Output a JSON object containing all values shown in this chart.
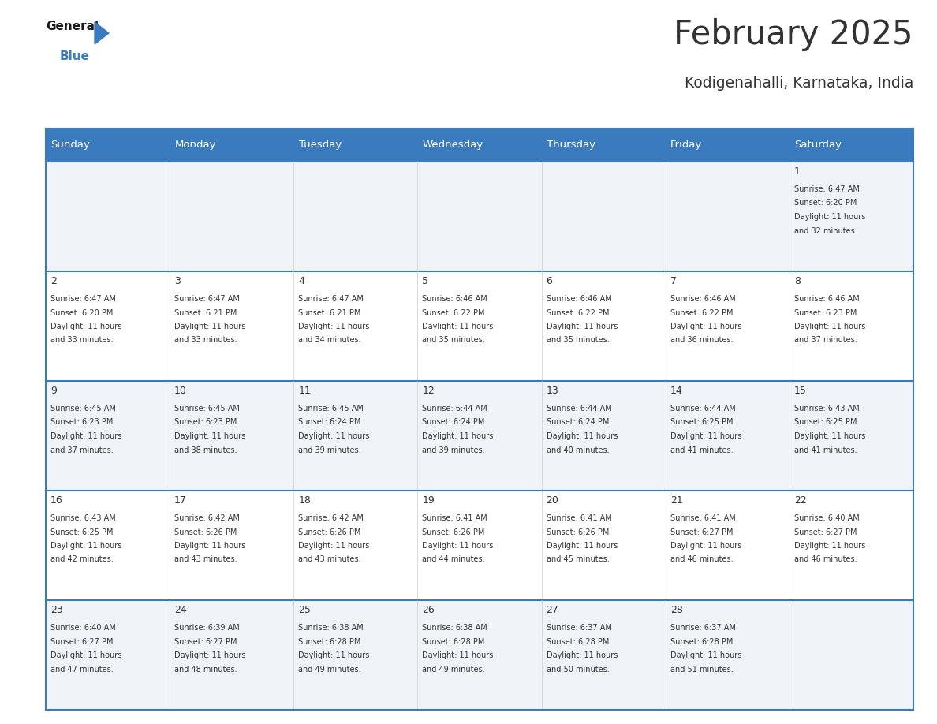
{
  "title": "February 2025",
  "subtitle": "Kodigenahalli, Karnataka, India",
  "header_bg": "#3a7abf",
  "header_text": "#ffffff",
  "cell_bg_odd": "#f0f4f8",
  "cell_bg_even": "#ffffff",
  "border_color": "#3a7abf",
  "text_color": "#333333",
  "days_of_week": [
    "Sunday",
    "Monday",
    "Tuesday",
    "Wednesday",
    "Thursday",
    "Friday",
    "Saturday"
  ],
  "calendar_data": [
    [
      null,
      null,
      null,
      null,
      null,
      null,
      {
        "day": 1,
        "sunrise": "6:47 AM",
        "sunset": "6:20 PM",
        "daylight": "11 hours and 32 minutes."
      }
    ],
    [
      {
        "day": 2,
        "sunrise": "6:47 AM",
        "sunset": "6:20 PM",
        "daylight": "11 hours and 33 minutes."
      },
      {
        "day": 3,
        "sunrise": "6:47 AM",
        "sunset": "6:21 PM",
        "daylight": "11 hours and 33 minutes."
      },
      {
        "day": 4,
        "sunrise": "6:47 AM",
        "sunset": "6:21 PM",
        "daylight": "11 hours and 34 minutes."
      },
      {
        "day": 5,
        "sunrise": "6:46 AM",
        "sunset": "6:22 PM",
        "daylight": "11 hours and 35 minutes."
      },
      {
        "day": 6,
        "sunrise": "6:46 AM",
        "sunset": "6:22 PM",
        "daylight": "11 hours and 35 minutes."
      },
      {
        "day": 7,
        "sunrise": "6:46 AM",
        "sunset": "6:22 PM",
        "daylight": "11 hours and 36 minutes."
      },
      {
        "day": 8,
        "sunrise": "6:46 AM",
        "sunset": "6:23 PM",
        "daylight": "11 hours and 37 minutes."
      }
    ],
    [
      {
        "day": 9,
        "sunrise": "6:45 AM",
        "sunset": "6:23 PM",
        "daylight": "11 hours and 37 minutes."
      },
      {
        "day": 10,
        "sunrise": "6:45 AM",
        "sunset": "6:23 PM",
        "daylight": "11 hours and 38 minutes."
      },
      {
        "day": 11,
        "sunrise": "6:45 AM",
        "sunset": "6:24 PM",
        "daylight": "11 hours and 39 minutes."
      },
      {
        "day": 12,
        "sunrise": "6:44 AM",
        "sunset": "6:24 PM",
        "daylight": "11 hours and 39 minutes."
      },
      {
        "day": 13,
        "sunrise": "6:44 AM",
        "sunset": "6:24 PM",
        "daylight": "11 hours and 40 minutes."
      },
      {
        "day": 14,
        "sunrise": "6:44 AM",
        "sunset": "6:25 PM",
        "daylight": "11 hours and 41 minutes."
      },
      {
        "day": 15,
        "sunrise": "6:43 AM",
        "sunset": "6:25 PM",
        "daylight": "11 hours and 41 minutes."
      }
    ],
    [
      {
        "day": 16,
        "sunrise": "6:43 AM",
        "sunset": "6:25 PM",
        "daylight": "11 hours and 42 minutes."
      },
      {
        "day": 17,
        "sunrise": "6:42 AM",
        "sunset": "6:26 PM",
        "daylight": "11 hours and 43 minutes."
      },
      {
        "day": 18,
        "sunrise": "6:42 AM",
        "sunset": "6:26 PM",
        "daylight": "11 hours and 43 minutes."
      },
      {
        "day": 19,
        "sunrise": "6:41 AM",
        "sunset": "6:26 PM",
        "daylight": "11 hours and 44 minutes."
      },
      {
        "day": 20,
        "sunrise": "6:41 AM",
        "sunset": "6:26 PM",
        "daylight": "11 hours and 45 minutes."
      },
      {
        "day": 21,
        "sunrise": "6:41 AM",
        "sunset": "6:27 PM",
        "daylight": "11 hours and 46 minutes."
      },
      {
        "day": 22,
        "sunrise": "6:40 AM",
        "sunset": "6:27 PM",
        "daylight": "11 hours and 46 minutes."
      }
    ],
    [
      {
        "day": 23,
        "sunrise": "6:40 AM",
        "sunset": "6:27 PM",
        "daylight": "11 hours and 47 minutes."
      },
      {
        "day": 24,
        "sunrise": "6:39 AM",
        "sunset": "6:27 PM",
        "daylight": "11 hours and 48 minutes."
      },
      {
        "day": 25,
        "sunrise": "6:38 AM",
        "sunset": "6:28 PM",
        "daylight": "11 hours and 49 minutes."
      },
      {
        "day": 26,
        "sunrise": "6:38 AM",
        "sunset": "6:28 PM",
        "daylight": "11 hours and 49 minutes."
      },
      {
        "day": 27,
        "sunrise": "6:37 AM",
        "sunset": "6:28 PM",
        "daylight": "11 hours and 50 minutes."
      },
      {
        "day": 28,
        "sunrise": "6:37 AM",
        "sunset": "6:28 PM",
        "daylight": "11 hours and 51 minutes."
      },
      null
    ]
  ]
}
